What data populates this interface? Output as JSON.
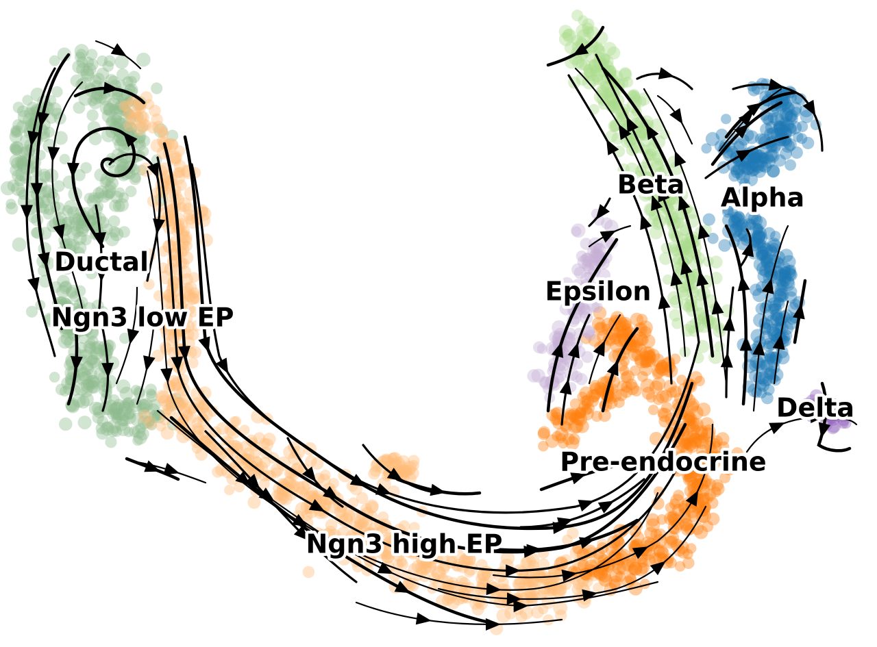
{
  "chart_data": {
    "type": "scatter",
    "subtype": "velocity-stream-embedding",
    "title": "",
    "xlabel": "",
    "ylabel": "",
    "axes_visible": false,
    "grid": false,
    "legend": "on-data",
    "point_alpha": 0.4,
    "series": [
      {
        "name": "Ductal",
        "color": "#8fbc8f",
        "label_pos": [
          148,
          385
        ]
      },
      {
        "name": "Ngn3 low EP",
        "color": "#8fbc8f",
        "label_pos": [
          208,
          466
        ]
      },
      {
        "name": "Ngn3 high EP",
        "color": "#ffbb78",
        "label_pos": [
          590,
          797
        ]
      },
      {
        "name": "Pre-endocrine",
        "color": "#ff7f0e",
        "label_pos": [
          968,
          677
        ]
      },
      {
        "name": "Beta",
        "color": "#aadc8c",
        "label_pos": [
          950,
          272
        ]
      },
      {
        "name": "Alpha",
        "color": "#1f77b4",
        "label_pos": [
          1113,
          291
        ]
      },
      {
        "name": "Delta",
        "color": "#9467bd",
        "label_pos": [
          1190,
          598
        ]
      },
      {
        "name": "Epsilon",
        "color": "#c5b0d5",
        "label_pos": [
          873,
          428
        ]
      }
    ]
  }
}
